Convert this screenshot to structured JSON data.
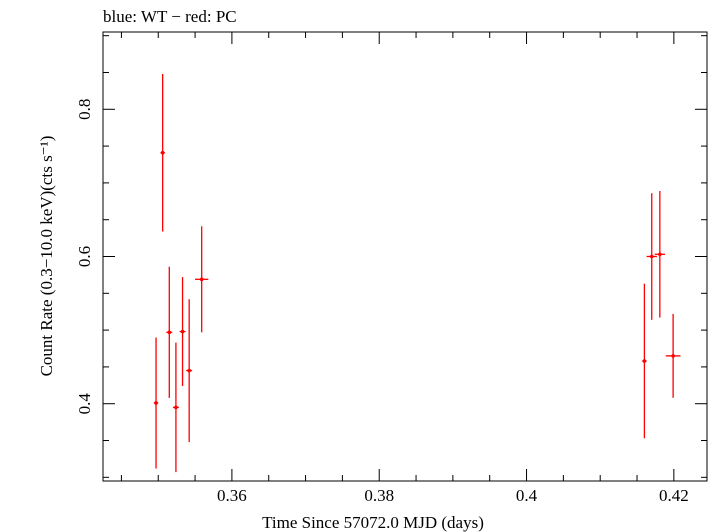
{
  "chart_data": {
    "type": "scatter",
    "title": "blue: WT − red: PC",
    "xlabel": "Time Since 57072.0 MJD (days)",
    "ylabel": "Count Rate (0.3−10.0 keV)(cts s⁻¹)",
    "xlim": [
      0.3425,
      0.4245
    ],
    "ylim": [
      0.295,
      0.905
    ],
    "xticks": [
      0.36,
      0.38,
      0.4,
      0.42
    ],
    "xtick_labels": [
      "0.36",
      "0.38",
      "0.4",
      "0.42"
    ],
    "yticks": [
      0.4,
      0.6,
      0.8
    ],
    "ytick_labels": [
      "0.4",
      "0.6",
      "0.8"
    ],
    "grid": false,
    "series": [
      {
        "color": "#ff0000",
        "points": [
          {
            "x": 0.3497,
            "xerr": 0.0003,
            "y": 0.401,
            "yerr_lo": 0.089,
            "yerr_hi": 0.089
          },
          {
            "x": 0.3506,
            "xerr": 0.0003,
            "y": 0.741,
            "yerr_lo": 0.107,
            "yerr_hi": 0.107
          },
          {
            "x": 0.3515,
            "xerr": 0.0004,
            "y": 0.497,
            "yerr_lo": 0.089,
            "yerr_hi": 0.089
          },
          {
            "x": 0.3524,
            "xerr": 0.0004,
            "y": 0.395,
            "yerr_lo": 0.088,
            "yerr_hi": 0.088
          },
          {
            "x": 0.3533,
            "xerr": 0.0004,
            "y": 0.498,
            "yerr_lo": 0.074,
            "yerr_hi": 0.074
          },
          {
            "x": 0.3542,
            "xerr": 0.0004,
            "y": 0.445,
            "yerr_lo": 0.097,
            "yerr_hi": 0.097
          },
          {
            "x": 0.3559,
            "xerr": 0.0009,
            "y": 0.569,
            "yerr_lo": 0.072,
            "yerr_hi": 0.072
          },
          {
            "x": 0.416,
            "xerr": 0.0003,
            "y": 0.458,
            "yerr_lo": 0.105,
            "yerr_hi": 0.105
          },
          {
            "x": 0.417,
            "xerr": 0.0007,
            "y": 0.6,
            "yerr_lo": 0.086,
            "yerr_hi": 0.086
          },
          {
            "x": 0.4181,
            "xerr": 0.0007,
            "y": 0.603,
            "yerr_lo": 0.086,
            "yerr_hi": 0.086
          },
          {
            "x": 0.4199,
            "xerr": 0.001,
            "y": 0.465,
            "yerr_lo": 0.057,
            "yerr_hi": 0.057
          }
        ]
      }
    ]
  }
}
